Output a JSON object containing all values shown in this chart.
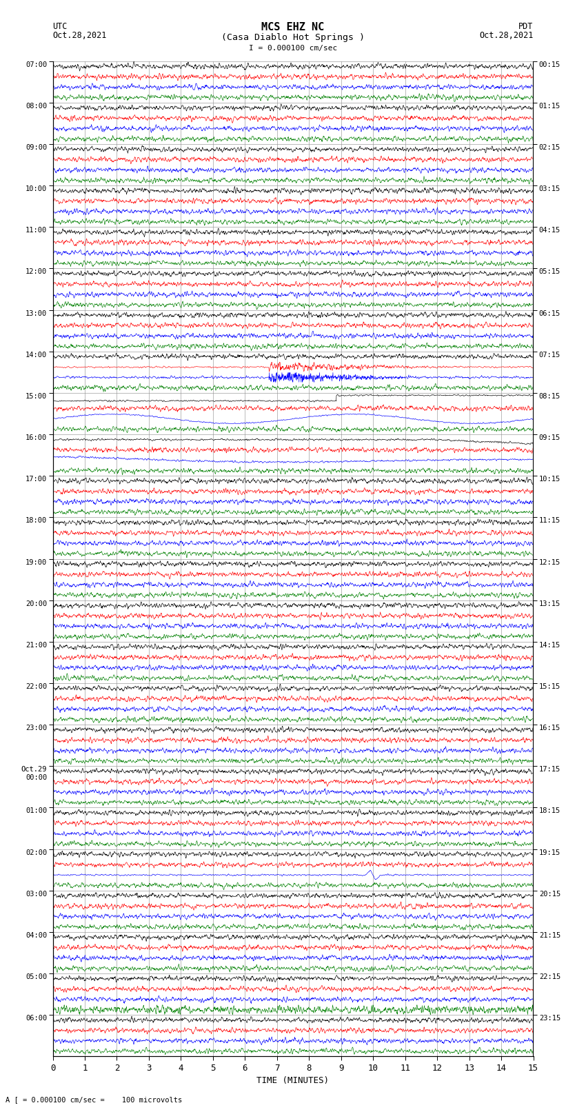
{
  "title_line1": "MCS EHZ NC",
  "title_line2": "(Casa Diablo Hot Springs )",
  "scale_label": "I = 0.000100 cm/sec",
  "left_header": "UTC",
  "left_date": "Oct.28,2021",
  "right_header": "PDT",
  "right_date": "Oct.28,2021",
  "bottom_label": "TIME (MINUTES)",
  "footnote": "A [ = 0.000100 cm/sec =    100 microvolts",
  "utc_hour_labels": [
    "07:00",
    "08:00",
    "09:00",
    "10:00",
    "11:00",
    "12:00",
    "13:00",
    "14:00",
    "15:00",
    "16:00",
    "17:00",
    "18:00",
    "19:00",
    "20:00",
    "21:00",
    "22:00",
    "23:00",
    "Oct.29\n00:00",
    "01:00",
    "02:00",
    "03:00",
    "04:00",
    "05:00",
    "06:00"
  ],
  "pdt_hour_labels": [
    "00:15",
    "01:15",
    "02:15",
    "03:15",
    "04:15",
    "05:15",
    "06:15",
    "07:15",
    "08:15",
    "09:15",
    "10:15",
    "11:15",
    "12:15",
    "13:15",
    "14:15",
    "15:15",
    "16:15",
    "17:15",
    "18:15",
    "19:15",
    "20:15",
    "21:15",
    "22:15",
    "23:15"
  ],
  "n_hours": 24,
  "colors": [
    "black",
    "red",
    "blue",
    "green"
  ],
  "x_min": 0,
  "x_max": 15,
  "x_ticks": [
    0,
    1,
    2,
    3,
    4,
    5,
    6,
    7,
    8,
    9,
    10,
    11,
    12,
    13,
    14,
    15
  ],
  "background_color": "white",
  "fig_width": 8.5,
  "fig_height": 16.13
}
